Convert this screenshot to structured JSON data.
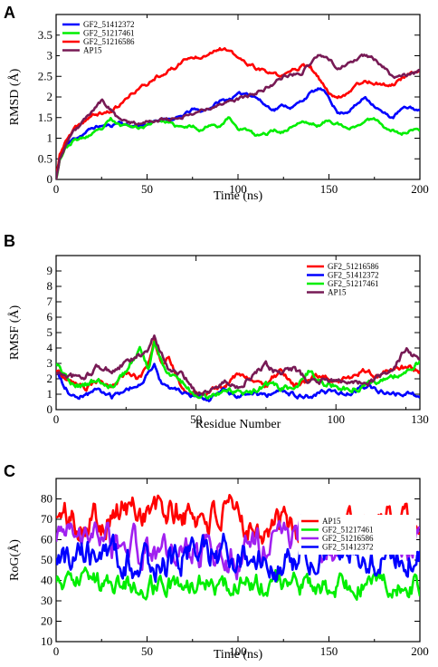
{
  "chart_data": [
    {
      "panel": "A",
      "type": "line",
      "xlabel": "Time (ns)",
      "ylabel": "RMSD (Å)",
      "xlim": [
        0,
        200
      ],
      "ylim": [
        0,
        4
      ],
      "xticks": [
        0,
        50,
        100,
        150,
        200
      ],
      "yticks": [
        0,
        0.5,
        1,
        1.5,
        2,
        2.5,
        3,
        3.5
      ],
      "legend_position": "top-left",
      "series": [
        {
          "name": "GF2_51412372",
          "color": "#0000ff",
          "noise": 0.06,
          "seed": 11,
          "x": [
            0,
            2,
            5,
            10,
            15,
            20,
            25,
            30,
            35,
            40,
            45,
            50,
            55,
            60,
            65,
            70,
            75,
            80,
            85,
            90,
            95,
            100,
            105,
            110,
            115,
            120,
            125,
            130,
            135,
            140,
            145,
            150,
            155,
            160,
            165,
            170,
            175,
            180,
            185,
            190,
            195,
            200
          ],
          "y": [
            0,
            0.5,
            0.8,
            1.0,
            1.1,
            1.25,
            1.3,
            1.3,
            1.4,
            1.3,
            1.3,
            1.35,
            1.4,
            1.5,
            1.45,
            1.55,
            1.7,
            1.65,
            1.75,
            1.9,
            1.95,
            2.05,
            2.1,
            2.0,
            1.8,
            1.7,
            1.8,
            1.75,
            1.9,
            2.1,
            2.2,
            2.0,
            1.6,
            1.65,
            1.8,
            2.0,
            1.8,
            1.6,
            1.5,
            1.7,
            1.75,
            1.65
          ]
        },
        {
          "name": "GF2_51217461",
          "color": "#00ee00",
          "noise": 0.06,
          "seed": 23,
          "x": [
            0,
            2,
            5,
            10,
            15,
            20,
            25,
            30,
            35,
            40,
            45,
            50,
            55,
            60,
            65,
            70,
            75,
            80,
            85,
            90,
            95,
            100,
            105,
            110,
            115,
            120,
            125,
            130,
            135,
            140,
            145,
            150,
            155,
            160,
            165,
            170,
            175,
            180,
            185,
            190,
            195,
            200
          ],
          "y": [
            0,
            0.5,
            0.75,
            0.95,
            1.0,
            1.1,
            1.2,
            1.45,
            1.3,
            1.35,
            1.25,
            1.3,
            1.45,
            1.4,
            1.3,
            1.25,
            1.3,
            1.2,
            1.35,
            1.3,
            1.5,
            1.25,
            1.2,
            1.05,
            1.1,
            1.2,
            1.15,
            1.3,
            1.4,
            1.35,
            1.3,
            1.45,
            1.35,
            1.2,
            1.3,
            1.4,
            1.5,
            1.3,
            1.2,
            1.1,
            1.2,
            1.2
          ]
        },
        {
          "name": "GF2_51216586",
          "color": "#ff0000",
          "noise": 0.07,
          "seed": 37,
          "x": [
            0,
            2,
            5,
            10,
            15,
            20,
            25,
            30,
            35,
            40,
            45,
            50,
            55,
            60,
            65,
            70,
            75,
            80,
            85,
            90,
            95,
            100,
            105,
            110,
            115,
            120,
            125,
            130,
            135,
            140,
            145,
            150,
            155,
            160,
            165,
            170,
            175,
            180,
            185,
            190,
            195,
            200
          ],
          "y": [
            0,
            0.6,
            0.9,
            1.2,
            1.4,
            1.55,
            1.6,
            1.65,
            1.8,
            2.0,
            2.2,
            2.3,
            2.5,
            2.6,
            2.7,
            2.9,
            2.95,
            3.0,
            3.1,
            3.2,
            3.1,
            2.95,
            2.8,
            2.7,
            2.6,
            2.55,
            2.5,
            2.65,
            2.75,
            2.7,
            2.4,
            2.1,
            2.0,
            2.1,
            2.3,
            2.4,
            2.35,
            2.3,
            2.3,
            2.45,
            2.6,
            2.65
          ]
        },
        {
          "name": "AP15",
          "color": "#771a55",
          "noise": 0.07,
          "seed": 53,
          "x": [
            0,
            2,
            5,
            10,
            15,
            20,
            25,
            30,
            35,
            40,
            45,
            50,
            55,
            60,
            65,
            70,
            75,
            80,
            85,
            90,
            95,
            100,
            105,
            110,
            115,
            120,
            125,
            130,
            135,
            140,
            145,
            150,
            155,
            160,
            165,
            170,
            175,
            180,
            185,
            190,
            195,
            200
          ],
          "y": [
            0,
            0.5,
            0.8,
            1.15,
            1.4,
            1.7,
            1.9,
            1.7,
            1.4,
            1.4,
            1.35,
            1.45,
            1.4,
            1.45,
            1.5,
            1.55,
            1.6,
            1.7,
            1.75,
            1.8,
            1.95,
            1.95,
            2.0,
            2.1,
            2.2,
            2.35,
            2.5,
            2.55,
            2.6,
            2.85,
            3.05,
            2.9,
            2.7,
            2.8,
            2.95,
            3.0,
            2.9,
            2.75,
            2.5,
            2.5,
            2.55,
            2.6
          ]
        }
      ]
    },
    {
      "panel": "B",
      "type": "line",
      "xlabel": "Residue Number",
      "ylabel": "RMSF (Å)",
      "xlim": [
        0,
        130
      ],
      "ylim": [
        0,
        10
      ],
      "xticks": [
        0,
        50,
        100,
        130
      ],
      "yticks": [
        0,
        1,
        2,
        3,
        4,
        5,
        6,
        7,
        8,
        9
      ],
      "legend_position": "top-right",
      "series": [
        {
          "name": "GF2_51216586",
          "color": "#ff0000",
          "noise": 0.12,
          "seed": 61,
          "x": [
            0,
            5,
            10,
            15,
            20,
            25,
            30,
            33,
            35,
            38,
            40,
            45,
            50,
            55,
            60,
            65,
            70,
            75,
            80,
            85,
            90,
            95,
            100,
            105,
            110,
            115,
            120,
            125,
            130
          ],
          "y": [
            2.5,
            1.8,
            1.3,
            1.9,
            1.5,
            2.3,
            2.0,
            3.0,
            4.5,
            2.8,
            3.5,
            1.5,
            1.0,
            1.2,
            1.5,
            2.2,
            1.8,
            1.5,
            2.5,
            1.5,
            2.0,
            2.3,
            1.8,
            2.0,
            2.5,
            2.2,
            2.6,
            2.8,
            2.5
          ]
        },
        {
          "name": "GF2_51412372",
          "color": "#0000ff",
          "noise": 0.1,
          "seed": 73,
          "x": [
            0,
            5,
            10,
            15,
            20,
            25,
            30,
            33,
            35,
            38,
            40,
            45,
            50,
            55,
            60,
            65,
            70,
            75,
            80,
            85,
            90,
            95,
            100,
            105,
            110,
            115,
            120,
            125,
            130
          ],
          "y": [
            2.3,
            1.0,
            0.9,
            1.2,
            0.8,
            1.3,
            1.7,
            2.5,
            3.0,
            1.6,
            1.4,
            1.0,
            0.8,
            0.7,
            1.2,
            0.9,
            1.1,
            0.8,
            1.3,
            1.0,
            0.9,
            1.1,
            1.2,
            1.0,
            1.5,
            1.2,
            1.0,
            1.0,
            0.9
          ]
        },
        {
          "name": "GF2_51217461",
          "color": "#00ee00",
          "noise": 0.12,
          "seed": 89,
          "x": [
            0,
            5,
            10,
            15,
            20,
            25,
            30,
            33,
            35,
            38,
            40,
            45,
            50,
            55,
            60,
            65,
            70,
            75,
            80,
            85,
            90,
            95,
            100,
            105,
            110,
            115,
            120,
            125,
            130
          ],
          "y": [
            3.0,
            1.7,
            1.5,
            2.0,
            1.6,
            2.5,
            3.9,
            2.5,
            4.5,
            3.0,
            2.3,
            1.8,
            1.0,
            0.9,
            1.3,
            1.2,
            1.1,
            1.6,
            1.4,
            1.3,
            2.5,
            1.8,
            1.5,
            1.3,
            1.6,
            1.8,
            2.0,
            2.6,
            3.0
          ]
        },
        {
          "name": "AP15",
          "color": "#771a55",
          "noise": 0.12,
          "seed": 97,
          "x": [
            0,
            5,
            10,
            15,
            20,
            25,
            30,
            33,
            35,
            38,
            40,
            45,
            50,
            55,
            60,
            65,
            70,
            75,
            80,
            85,
            90,
            95,
            100,
            105,
            110,
            115,
            120,
            125,
            130
          ],
          "y": [
            2.4,
            2.2,
            2.0,
            2.8,
            2.5,
            3.0,
            3.5,
            3.8,
            4.7,
            3.5,
            2.8,
            2.2,
            1.1,
            1.3,
            1.8,
            1.5,
            2.2,
            2.8,
            2.3,
            2.7,
            1.8,
            1.9,
            1.8,
            2.0,
            1.6,
            2.0,
            2.5,
            4.0,
            3.2
          ]
        }
      ]
    },
    {
      "panel": "C",
      "type": "line",
      "xlabel": "Time (ns)",
      "ylabel": "RoG(Å)",
      "xlim": [
        0,
        200
      ],
      "ylim": [
        10,
        90
      ],
      "xticks": [
        0,
        50,
        100,
        150,
        200
      ],
      "yticks": [
        10,
        20,
        30,
        40,
        50,
        60,
        70,
        80
      ],
      "legend_position": "top-right",
      "series": [
        {
          "name": "AP15",
          "color": "#ff0000",
          "noise": 0.6,
          "seed": 101,
          "x": [
            0,
            10,
            20,
            30,
            40,
            50,
            60,
            70,
            80,
            90,
            100,
            110,
            120,
            130,
            140,
            145,
            150,
            160,
            170,
            180,
            190,
            200
          ],
          "y": [
            71,
            70,
            71,
            73,
            75,
            75,
            73,
            72,
            72,
            71,
            70,
            68,
            66,
            65,
            62,
            59,
            63,
            68,
            71,
            70,
            66,
            63
          ]
        },
        {
          "name": "GF2_51217461",
          "color": "#00ee00",
          "noise": 0.4,
          "seed": 113,
          "x": [
            0,
            10,
            20,
            30,
            40,
            50,
            60,
            70,
            80,
            90,
            100,
            110,
            120,
            130,
            140,
            150,
            160,
            170,
            180,
            190,
            200
          ],
          "y": [
            39,
            39,
            38,
            39,
            39,
            38,
            37,
            38,
            39,
            38,
            38,
            38,
            38,
            38,
            38,
            38,
            38,
            38,
            38,
            38,
            38
          ]
        },
        {
          "name": "GF2_51216586",
          "color": "#a020f0",
          "noise": 0.6,
          "seed": 127,
          "x": [
            0,
            10,
            20,
            30,
            40,
            50,
            60,
            70,
            80,
            90,
            100,
            110,
            120,
            130,
            140,
            150,
            160,
            170,
            180,
            190,
            200
          ],
          "y": [
            59,
            60,
            62,
            58,
            56,
            55,
            54,
            52,
            55,
            53,
            52,
            55,
            57,
            59,
            61,
            58,
            58,
            60,
            59,
            59,
            59
          ]
        },
        {
          "name": "GF2_51412372",
          "color": "#0000ff",
          "noise": 0.6,
          "seed": 139,
          "x": [
            0,
            10,
            20,
            30,
            40,
            50,
            60,
            70,
            80,
            90,
            100,
            110,
            120,
            130,
            140,
            150,
            160,
            170,
            180,
            190,
            200
          ],
          "y": [
            51,
            52,
            53,
            54,
            50,
            48,
            49,
            52,
            55,
            54,
            52,
            49,
            47,
            50,
            52,
            53,
            54,
            52,
            53,
            54,
            54
          ]
        }
      ]
    }
  ]
}
